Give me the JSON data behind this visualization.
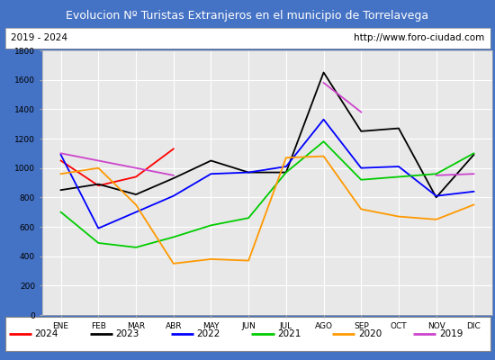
{
  "title": "Evolucion Nº Turistas Extranjeros en el municipio de Torrelavega",
  "subtitle_left": "2019 - 2024",
  "subtitle_right": "http://www.foro-ciudad.com",
  "months": [
    "ENE",
    "FEB",
    "MAR",
    "ABR",
    "MAY",
    "JUN",
    "JUL",
    "AGO",
    "SEP",
    "OCT",
    "NOV",
    "DIC"
  ],
  "series": {
    "2024": [
      1050,
      880,
      940,
      1130,
      null,
      null,
      null,
      null,
      null,
      null,
      null,
      null
    ],
    "2023": [
      850,
      890,
      820,
      930,
      1050,
      970,
      970,
      1650,
      1250,
      1270,
      800,
      1090
    ],
    "2022": [
      1090,
      590,
      700,
      810,
      960,
      970,
      1010,
      1330,
      1000,
      1010,
      810,
      840
    ],
    "2021": [
      700,
      490,
      460,
      530,
      610,
      660,
      970,
      1180,
      920,
      940,
      960,
      1100
    ],
    "2020": [
      960,
      1000,
      750,
      350,
      380,
      370,
      1070,
      1080,
      720,
      670,
      650,
      750
    ],
    "2019": [
      1100,
      1050,
      1000,
      950,
      null,
      null,
      null,
      1580,
      1380,
      null,
      950,
      960
    ]
  },
  "colors": {
    "2024": "#ff0000",
    "2023": "#000000",
    "2022": "#0000ff",
    "2021": "#00cc00",
    "2020": "#ff9900",
    "2019": "#cc44cc"
  },
  "ylim": [
    0,
    1800
  ],
  "yticks": [
    0,
    200,
    400,
    600,
    800,
    1000,
    1200,
    1400,
    1600,
    1800
  ],
  "title_bg_color": "#4472c4",
  "title_text_color": "#ffffff",
  "subtitle_bg_color": "#ffffff",
  "plot_bg_color": "#e8e8e8",
  "grid_color": "#ffffff",
  "border_color": "#4472c4",
  "legend_years": [
    "2024",
    "2023",
    "2022",
    "2021",
    "2020",
    "2019"
  ]
}
